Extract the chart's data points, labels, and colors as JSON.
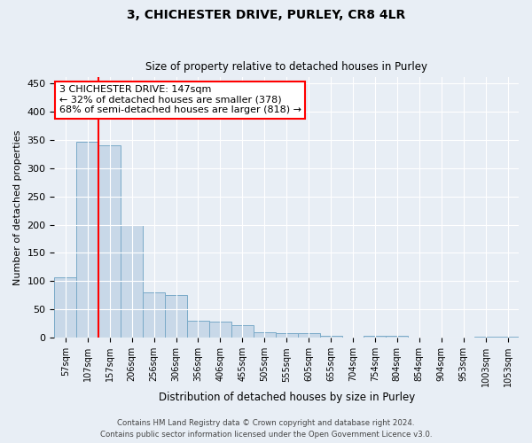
{
  "title": "3, CHICHESTER DRIVE, PURLEY, CR8 4LR",
  "subtitle": "Size of property relative to detached houses in Purley",
  "xlabel": "Distribution of detached houses by size in Purley",
  "ylabel": "Number of detached properties",
  "bar_labels": [
    "57sqm",
    "107sqm",
    "157sqm",
    "206sqm",
    "256sqm",
    "306sqm",
    "356sqm",
    "406sqm",
    "455sqm",
    "505sqm",
    "555sqm",
    "605sqm",
    "655sqm",
    "704sqm",
    "754sqm",
    "804sqm",
    "854sqm",
    "904sqm",
    "953sqm",
    "1003sqm",
    "1053sqm"
  ],
  "bar_values": [
    107,
    347,
    340,
    200,
    80,
    75,
    30,
    28,
    22,
    10,
    9,
    9,
    3,
    0,
    3,
    3,
    0,
    0,
    0,
    2,
    2
  ],
  "bar_color": "#c8d8e8",
  "bar_edge_color": "#7aaac8",
  "annotation_text": "3 CHICHESTER DRIVE: 147sqm\n← 32% of detached houses are smaller (378)\n68% of semi-detached houses are larger (818) →",
  "annotation_box_color": "white",
  "annotation_box_edge_color": "red",
  "red_line_color": "red",
  "ylim": [
    0,
    460
  ],
  "yticks": [
    0,
    50,
    100,
    150,
    200,
    250,
    300,
    350,
    400,
    450
  ],
  "bg_color": "#e8eef5",
  "footer_line1": "Contains HM Land Registry data © Crown copyright and database right 2024.",
  "footer_line2": "Contains public sector information licensed under the Open Government Licence v3.0."
}
